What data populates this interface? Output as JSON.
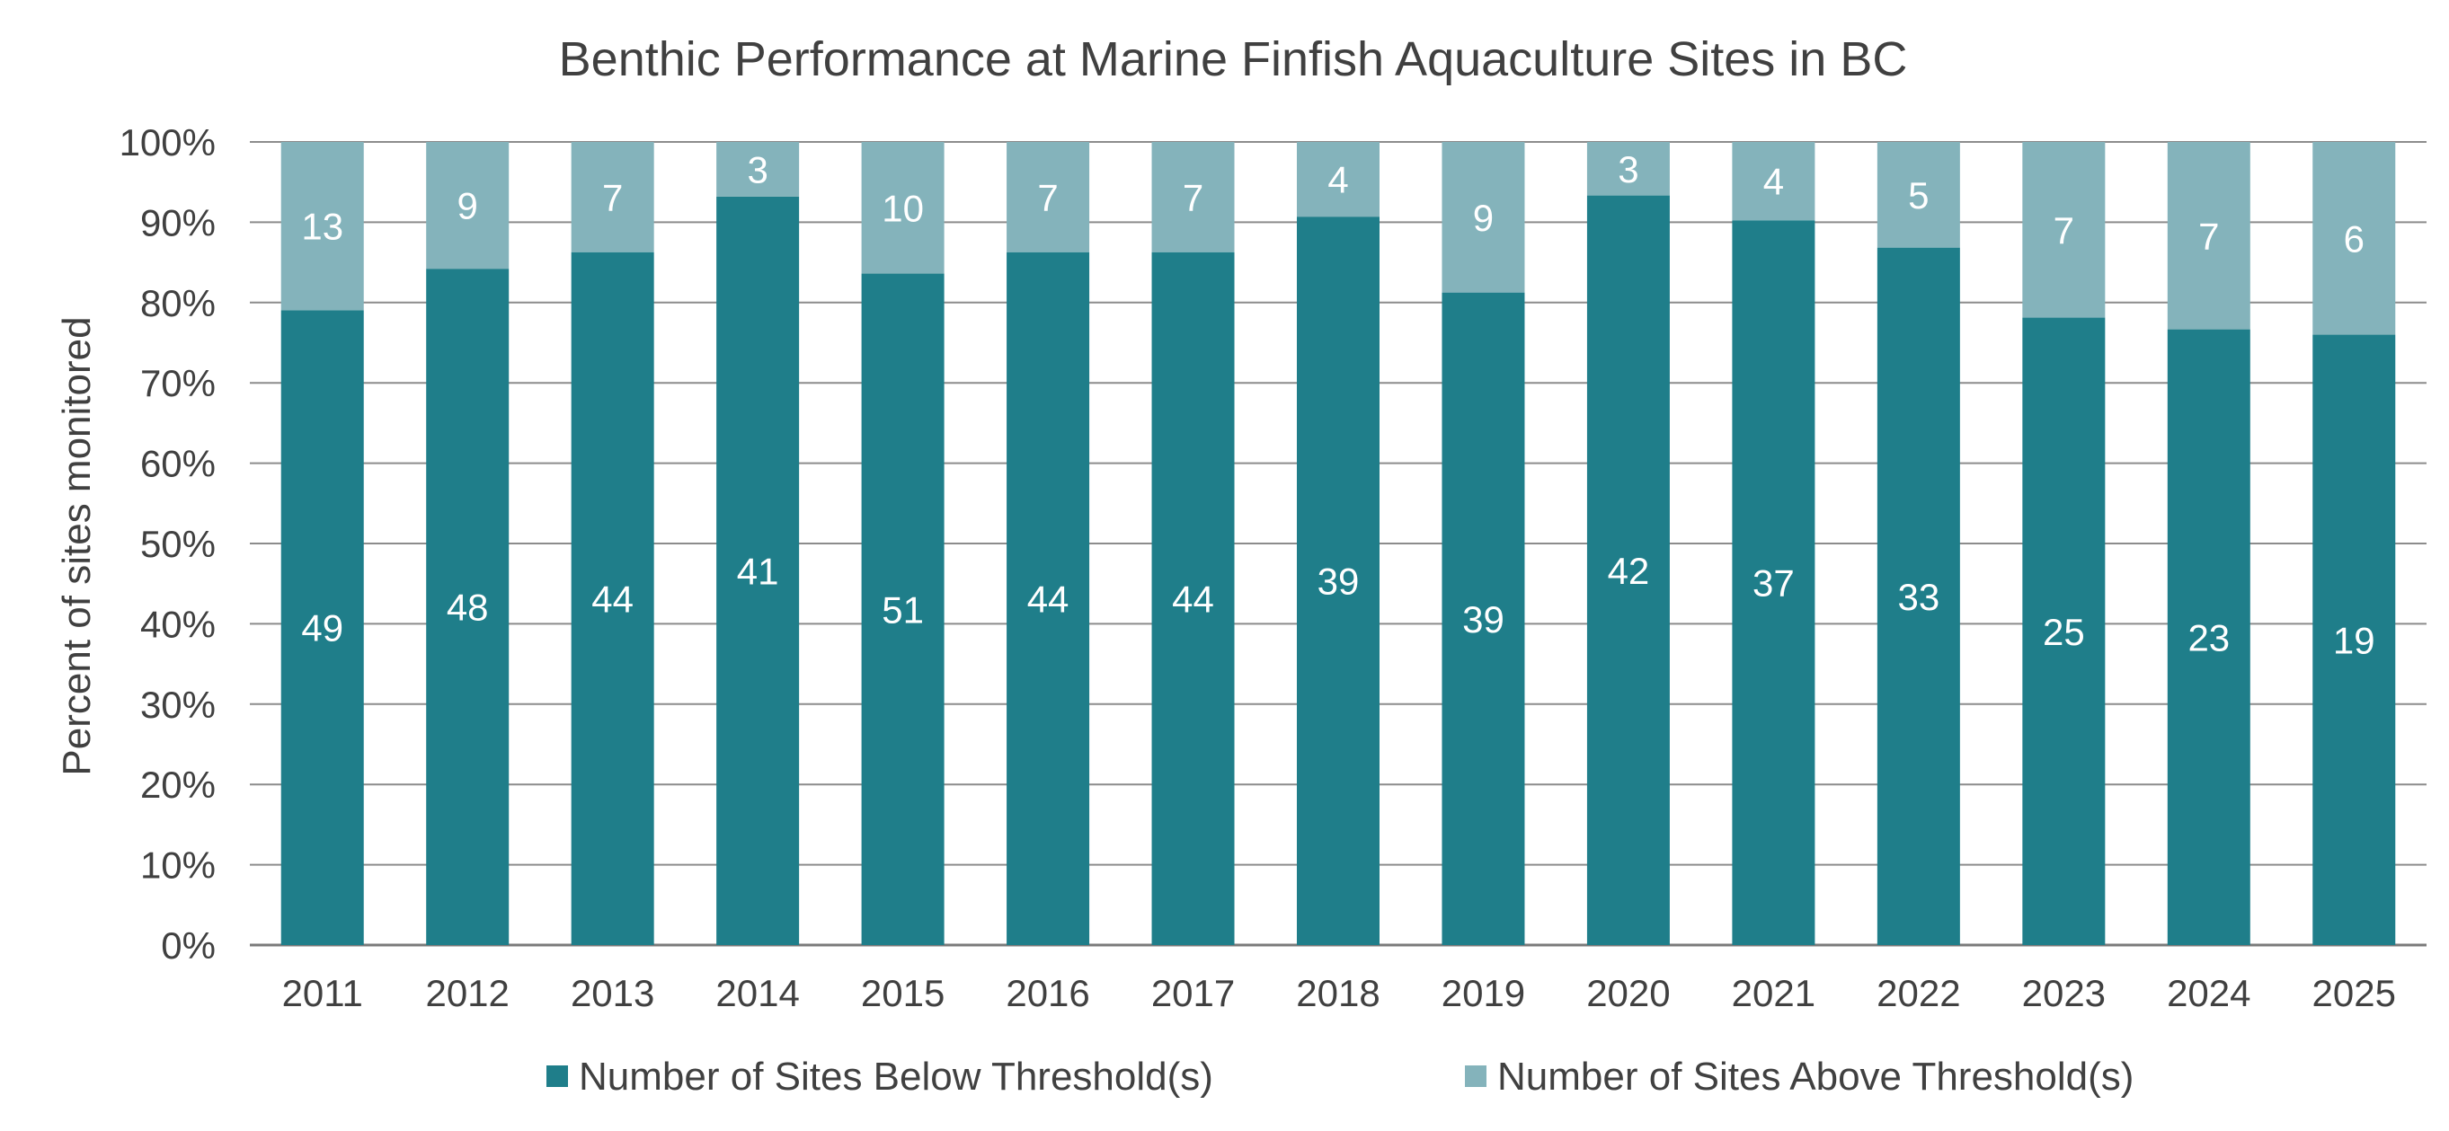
{
  "chart_data": {
    "type": "bar",
    "stacking": "percent",
    "title": "Benthic Performance at Marine Finfish Aquaculture Sites in BC",
    "xlabel": "",
    "ylabel": "Percent of sites monitored",
    "ylim": [
      0,
      100
    ],
    "y_ticks": [
      "0%",
      "10%",
      "20%",
      "30%",
      "40%",
      "50%",
      "60%",
      "70%",
      "80%",
      "90%",
      "100%"
    ],
    "grid": "horizontal",
    "legend_position": "bottom",
    "categories": [
      "2011",
      "2012",
      "2013",
      "2014",
      "2015",
      "2016",
      "2017",
      "2018",
      "2019",
      "2020",
      "2021",
      "2022",
      "2023",
      "2024",
      "2025"
    ],
    "series": [
      {
        "name": "Number of Sites Below Threshold(s)",
        "color": "#1f7e8a",
        "values": [
          49,
          48,
          44,
          41,
          51,
          44,
          44,
          39,
          39,
          42,
          37,
          33,
          25,
          23,
          19
        ]
      },
      {
        "name": "Number of Sites Above Threshold(s)",
        "color": "#84b3bb",
        "values": [
          13,
          9,
          7,
          3,
          10,
          7,
          7,
          4,
          9,
          3,
          4,
          5,
          7,
          7,
          6
        ]
      }
    ],
    "colors": {
      "text": "#404040",
      "grid": "#8c8c8c",
      "axis": "#7a7a7a",
      "label_on_bar": "#ffffff"
    }
  }
}
